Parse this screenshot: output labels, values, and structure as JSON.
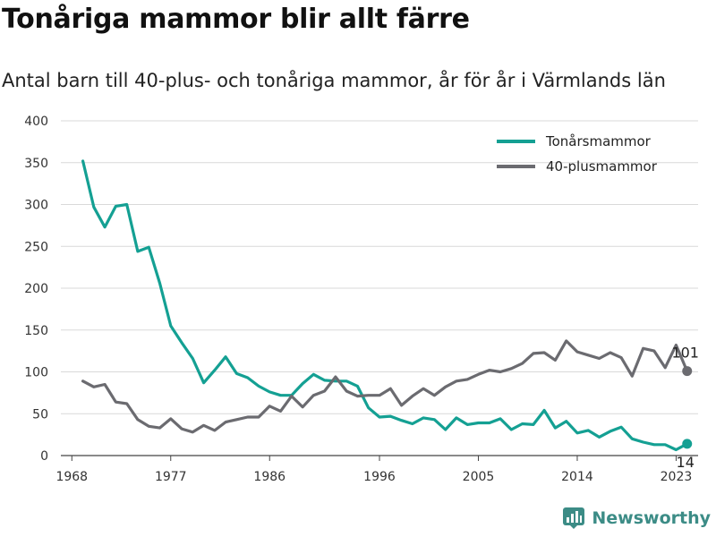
{
  "title": "Tonåriga mammor blir allt färre",
  "subtitle": "Antal barn till 40-plus- och tonåriga mammor, år för år i Värmlands län",
  "brand": "Newsworthy",
  "colors": {
    "teal": "#14a093",
    "gray": "#6b6b70",
    "grid": "#d9d9d9",
    "axis": "#444444"
  },
  "chart_data": {
    "type": "line",
    "x": [
      1969,
      1970,
      1971,
      1972,
      1973,
      1974,
      1975,
      1976,
      1977,
      1978,
      1979,
      1980,
      1981,
      1982,
      1983,
      1984,
      1985,
      1986,
      1987,
      1988,
      1989,
      1990,
      1991,
      1992,
      1993,
      1994,
      1995,
      1996,
      1997,
      1998,
      1999,
      2000,
      2001,
      2002,
      2003,
      2004,
      2005,
      2006,
      2007,
      2008,
      2009,
      2010,
      2011,
      2012,
      2013,
      2014,
      2015,
      2016,
      2017,
      2018,
      2019,
      2020,
      2021,
      2022,
      2023,
      2024
    ],
    "xticks": [
      1968,
      1977,
      1986,
      1996,
      2005,
      2014,
      2023
    ],
    "yticks": [
      0,
      50,
      100,
      150,
      200,
      250,
      300,
      350,
      400
    ],
    "xlim": [
      1967,
      2025
    ],
    "ylim": [
      0,
      400
    ],
    "legend_position": "top-right",
    "series": [
      {
        "name": "Tonårsmammor",
        "color": "#14a093",
        "values": [
          352,
          297,
          273,
          298,
          300,
          244,
          249,
          206,
          155,
          135,
          116,
          87,
          102,
          118,
          98,
          93,
          83,
          76,
          72,
          72,
          86,
          97,
          90,
          89,
          89,
          83,
          57,
          46,
          47,
          42,
          38,
          45,
          43,
          31,
          45,
          37,
          39,
          39,
          44,
          31,
          38,
          37,
          54,
          33,
          41,
          27,
          30,
          22,
          29,
          34,
          20,
          16,
          13,
          13,
          7,
          14
        ],
        "end_label": "14"
      },
      {
        "name": "40-plusmammor",
        "color": "#6b6b70",
        "values": [
          89,
          82,
          85,
          64,
          62,
          43,
          35,
          33,
          44,
          32,
          28,
          36,
          30,
          40,
          43,
          46,
          46,
          59,
          53,
          71,
          58,
          72,
          77,
          94,
          77,
          71,
          72,
          72,
          80,
          60,
          71,
          80,
          72,
          82,
          89,
          91,
          97,
          102,
          100,
          104,
          110,
          122,
          123,
          114,
          137,
          124,
          120,
          116,
          123,
          117,
          95,
          128,
          125,
          105,
          132,
          101
        ],
        "end_label": "101"
      }
    ]
  }
}
